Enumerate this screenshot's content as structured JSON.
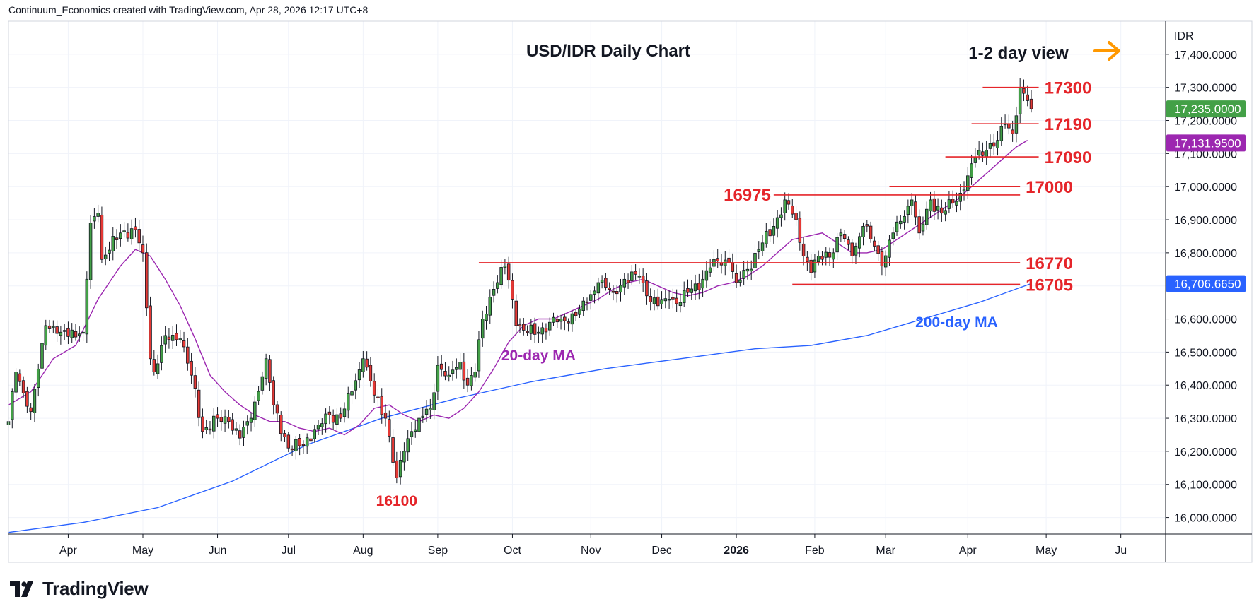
{
  "header": {
    "credit": "Continuum_Economics created with TradingView.com, Apr 28, 2026 12:17 UTC+8"
  },
  "footer": {
    "logo_text": "TradingView",
    "logo_icon": "tradingview-logo-icon"
  },
  "colors": {
    "up": "#26a69a",
    "up_body": "#43a047",
    "down": "#e53935",
    "ma20": "#9c27b0",
    "ma200": "#2962ff",
    "level": "#e5252a",
    "arrow": "#ff9800",
    "price_badge": "#43a047",
    "ma_badge": "#9c27b0",
    "ma200_badge": "#2962ff"
  },
  "chart_data": {
    "type": "candlestick",
    "title": "USD/IDR Daily Chart",
    "currency_label": "IDR",
    "view_label": "1-2 day view",
    "view_icon": "arrow-right-icon",
    "y_range": [
      15950,
      17500
    ],
    "y_ticks": [
      {
        "value": 16000,
        "label": "16,000.0000"
      },
      {
        "value": 16100,
        "label": "16,100.0000"
      },
      {
        "value": 16200,
        "label": "16,200.0000"
      },
      {
        "value": 16300,
        "label": "16,300.0000"
      },
      {
        "value": 16400,
        "label": "16,400.0000"
      },
      {
        "value": 16500,
        "label": "16,500.0000"
      },
      {
        "value": 16600,
        "label": "16,600.0000"
      },
      {
        "value": 16700,
        "label": "16,700.0000"
      },
      {
        "value": 16800,
        "label": "16,800.0000"
      },
      {
        "value": 16900,
        "label": "16,900.0000"
      },
      {
        "value": 17000,
        "label": "17,000.0000"
      },
      {
        "value": 17100,
        "label": "17,100.0000"
      },
      {
        "value": 17200,
        "label": "17,200.0000"
      },
      {
        "value": 17300,
        "label": "17,300.0000"
      },
      {
        "value": 17400,
        "label": "17,400.0000"
      }
    ],
    "x_range": [
      0,
      310
    ],
    "x_ticks": [
      {
        "x": 16,
        "label": "Apr",
        "bold": false
      },
      {
        "x": 36,
        "label": "May",
        "bold": false
      },
      {
        "x": 56,
        "label": "Jun",
        "bold": false
      },
      {
        "x": 75,
        "label": "Jul",
        "bold": false
      },
      {
        "x": 95,
        "label": "Aug",
        "bold": false
      },
      {
        "x": 115,
        "label": "Sep",
        "bold": false
      },
      {
        "x": 135,
        "label": "Oct",
        "bold": false
      },
      {
        "x": 156,
        "label": "Nov",
        "bold": false
      },
      {
        "x": 175,
        "label": "Dec",
        "bold": false
      },
      {
        "x": 195,
        "label": "2026",
        "bold": true
      },
      {
        "x": 216,
        "label": "Feb",
        "bold": false
      },
      {
        "x": 235,
        "label": "Mar",
        "bold": false
      },
      {
        "x": 257,
        "label": "Apr",
        "bold": false
      },
      {
        "x": 278,
        "label": "May",
        "bold": false
      },
      {
        "x": 298,
        "label": "Ju",
        "bold": false
      }
    ],
    "last_price": {
      "value": 17235,
      "label": "17,235.0000"
    },
    "ma20_last": {
      "value": 17131.95,
      "label": "17,131.9500"
    },
    "ma200_last": {
      "value": 16706.665,
      "label": "16,706.6650"
    },
    "levels": [
      {
        "value": 17300,
        "label": "17300",
        "x_start": 261,
        "x_end": 276
      },
      {
        "value": 17190,
        "label": "17190",
        "x_start": 258,
        "x_end": 276
      },
      {
        "value": 17090,
        "label": "17090",
        "x_start": 251,
        "x_end": 276
      },
      {
        "value": 17000,
        "label": "17000",
        "x_start": 236,
        "x_end": 271
      },
      {
        "value": 16975,
        "label": "16975",
        "x_start": 205,
        "x_end": 271
      },
      {
        "value": 16770,
        "label": "16770",
        "x_start": 126,
        "x_end": 271
      },
      {
        "value": 16705,
        "label": "16705",
        "x_start": 210,
        "x_end": 271
      }
    ],
    "annotations": [
      {
        "label": "16100",
        "x": 104,
        "value": 16050,
        "color": "#e5252a"
      },
      {
        "label": "20-day MA",
        "x": 142,
        "value": 16490,
        "color": "#9c27b0"
      },
      {
        "label": "200-day MA",
        "x": 254,
        "value": 16590,
        "color": "#2962ff"
      }
    ],
    "anchors": [
      [
        0,
        16290
      ],
      [
        2,
        16440
      ],
      [
        6,
        16320
      ],
      [
        10,
        16580
      ],
      [
        14,
        16560
      ],
      [
        20,
        16560
      ],
      [
        22,
        16890
      ],
      [
        24,
        16920
      ],
      [
        25,
        16780
      ],
      [
        30,
        16860
      ],
      [
        34,
        16870
      ],
      [
        36,
        16800
      ],
      [
        38,
        16480
      ],
      [
        39,
        16440
      ],
      [
        42,
        16550
      ],
      [
        46,
        16540
      ],
      [
        49,
        16430
      ],
      [
        52,
        16260
      ],
      [
        56,
        16300
      ],
      [
        59,
        16290
      ],
      [
        62,
        16240
      ],
      [
        65,
        16300
      ],
      [
        69,
        16480
      ],
      [
        71,
        16340
      ],
      [
        75,
        16210
      ],
      [
        79,
        16220
      ],
      [
        83,
        16280
      ],
      [
        86,
        16310
      ],
      [
        89,
        16300
      ],
      [
        92,
        16380
      ],
      [
        95,
        16480
      ],
      [
        98,
        16370
      ],
      [
        101,
        16300
      ],
      [
        104,
        16120
      ],
      [
        106,
        16200
      ],
      [
        108,
        16260
      ],
      [
        110,
        16300
      ],
      [
        113,
        16330
      ],
      [
        115,
        16460
      ],
      [
        118,
        16430
      ],
      [
        121,
        16470
      ],
      [
        123,
        16400
      ],
      [
        125,
        16440
      ],
      [
        127,
        16600
      ],
      [
        130,
        16690
      ],
      [
        133,
        16760
      ],
      [
        135,
        16660
      ],
      [
        136,
        16580
      ],
      [
        139,
        16560
      ],
      [
        142,
        16560
      ],
      [
        145,
        16590
      ],
      [
        148,
        16600
      ],
      [
        152,
        16610
      ],
      [
        155,
        16650
      ],
      [
        158,
        16710
      ],
      [
        162,
        16680
      ],
      [
        165,
        16720
      ],
      [
        169,
        16730
      ],
      [
        171,
        16670
      ],
      [
        174,
        16640
      ],
      [
        177,
        16660
      ],
      [
        180,
        16650
      ],
      [
        182,
        16680
      ],
      [
        186,
        16720
      ],
      [
        189,
        16780
      ],
      [
        193,
        16770
      ],
      [
        195,
        16710
      ],
      [
        198,
        16750
      ],
      [
        201,
        16810
      ],
      [
        205,
        16880
      ],
      [
        208,
        16960
      ],
      [
        211,
        16900
      ],
      [
        213,
        16790
      ],
      [
        215,
        16740
      ],
      [
        217,
        16790
      ],
      [
        221,
        16800
      ],
      [
        223,
        16860
      ],
      [
        226,
        16790
      ],
      [
        229,
        16880
      ],
      [
        232,
        16820
      ],
      [
        234,
        16760
      ],
      [
        237,
        16860
      ],
      [
        240,
        16910
      ],
      [
        242,
        16960
      ],
      [
        244,
        16860
      ],
      [
        247,
        16960
      ],
      [
        250,
        16920
      ],
      [
        253,
        16950
      ],
      [
        256,
        16990
      ],
      [
        259,
        17090
      ],
      [
        262,
        17110
      ],
      [
        265,
        17140
      ],
      [
        267,
        17190
      ],
      [
        269,
        17160
      ],
      [
        271,
        17300
      ],
      [
        273,
        17260
      ],
      [
        274,
        17235
      ]
    ],
    "ma20": [
      [
        0,
        16340
      ],
      [
        6,
        16380
      ],
      [
        12,
        16480
      ],
      [
        18,
        16520
      ],
      [
        24,
        16660
      ],
      [
        30,
        16760
      ],
      [
        34,
        16810
      ],
      [
        38,
        16790
      ],
      [
        42,
        16720
      ],
      [
        46,
        16640
      ],
      [
        50,
        16540
      ],
      [
        54,
        16430
      ],
      [
        58,
        16380
      ],
      [
        62,
        16340
      ],
      [
        66,
        16310
      ],
      [
        70,
        16290
      ],
      [
        74,
        16290
      ],
      [
        78,
        16270
      ],
      [
        82,
        16260
      ],
      [
        86,
        16270
      ],
      [
        90,
        16250
      ],
      [
        94,
        16280
      ],
      [
        98,
        16330
      ],
      [
        102,
        16340
      ],
      [
        106,
        16310
      ],
      [
        110,
        16290
      ],
      [
        114,
        16310
      ],
      [
        118,
        16300
      ],
      [
        122,
        16330
      ],
      [
        126,
        16380
      ],
      [
        130,
        16450
      ],
      [
        134,
        16530
      ],
      [
        138,
        16580
      ],
      [
        142,
        16600
      ],
      [
        146,
        16600
      ],
      [
        150,
        16620
      ],
      [
        154,
        16640
      ],
      [
        158,
        16660
      ],
      [
        162,
        16690
      ],
      [
        166,
        16710
      ],
      [
        170,
        16720
      ],
      [
        174,
        16700
      ],
      [
        178,
        16680
      ],
      [
        182,
        16670
      ],
      [
        186,
        16680
      ],
      [
        190,
        16700
      ],
      [
        194,
        16710
      ],
      [
        198,
        16730
      ],
      [
        202,
        16760
      ],
      [
        206,
        16800
      ],
      [
        210,
        16840
      ],
      [
        214,
        16850
      ],
      [
        218,
        16860
      ],
      [
        222,
        16830
      ],
      [
        226,
        16800
      ],
      [
        230,
        16800
      ],
      [
        234,
        16810
      ],
      [
        238,
        16840
      ],
      [
        242,
        16870
      ],
      [
        246,
        16900
      ],
      [
        250,
        16930
      ],
      [
        254,
        16960
      ],
      [
        258,
        17000
      ],
      [
        262,
        17040
      ],
      [
        266,
        17080
      ],
      [
        270,
        17120
      ],
      [
        273,
        17140
      ]
    ],
    "ma200": [
      [
        0,
        15955
      ],
      [
        20,
        15985
      ],
      [
        40,
        16030
      ],
      [
        60,
        16110
      ],
      [
        80,
        16220
      ],
      [
        100,
        16300
      ],
      [
        120,
        16360
      ],
      [
        140,
        16410
      ],
      [
        160,
        16450
      ],
      [
        180,
        16480
      ],
      [
        200,
        16510
      ],
      [
        215,
        16520
      ],
      [
        230,
        16550
      ],
      [
        245,
        16600
      ],
      [
        260,
        16650
      ],
      [
        274,
        16707
      ]
    ]
  }
}
